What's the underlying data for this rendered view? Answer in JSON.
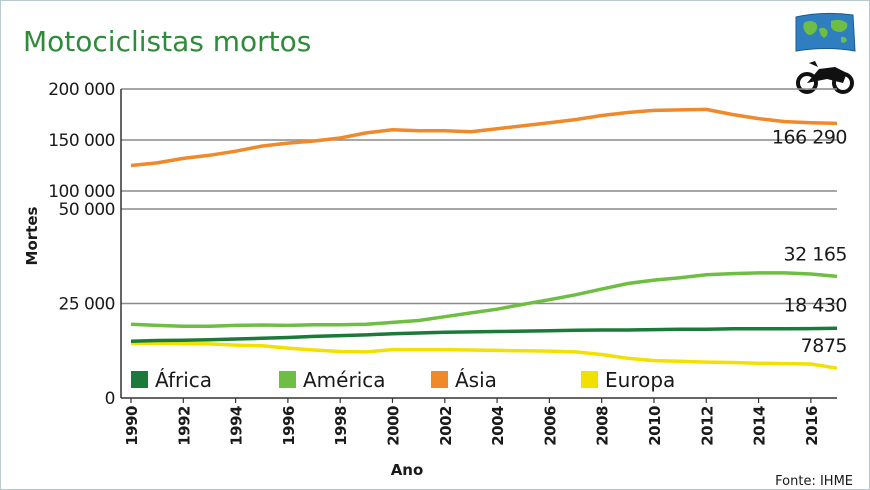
{
  "chart_data": {
    "type": "line",
    "title": "Motociclistas mortos",
    "xlabel": "Ano",
    "ylabel": "Mortes",
    "source": "Fonte: IHME",
    "grid": "horizontal",
    "legend_position": "bottom-left",
    "axis_break": "between 50 000 and 100 000",
    "xlim": [
      1990,
      2017
    ],
    "x_ticks": [
      "1990",
      "1992",
      "1994",
      "1996",
      "1998",
      "2000",
      "2002",
      "2004",
      "2006",
      "2008",
      "2010",
      "2012",
      "2014",
      "2016"
    ],
    "y_ticks_lower": [
      {
        "value": 0,
        "label": "0"
      },
      {
        "value": 25000,
        "label": "25 000"
      },
      {
        "value": 50000,
        "label": "50 000"
      }
    ],
    "y_ticks_upper": [
      {
        "value": 100000,
        "label": "100 000"
      },
      {
        "value": 150000,
        "label": "150 000"
      },
      {
        "value": 200000,
        "label": "200 000"
      }
    ],
    "x": [
      1990,
      1991,
      1992,
      1993,
      1994,
      1995,
      1996,
      1997,
      1998,
      1999,
      2000,
      2001,
      2002,
      2003,
      2004,
      2005,
      2006,
      2007,
      2008,
      2009,
      2010,
      2011,
      2012,
      2013,
      2014,
      2015,
      2016,
      2017
    ],
    "series": [
      {
        "name": "Ásia",
        "color": "#f0892a",
        "end_label": "166 290",
        "values": [
          125000,
          127500,
          132000,
          135000,
          139000,
          144000,
          147000,
          149000,
          152000,
          157000,
          160000,
          159000,
          159000,
          158000,
          161000,
          164000,
          167000,
          170000,
          174000,
          177000,
          179000,
          179500,
          180000,
          175000,
          171000,
          168000,
          167000,
          166290
        ]
      },
      {
        "name": "América",
        "color": "#6fbe44",
        "end_label": "32 165",
        "values": [
          19500,
          19200,
          19000,
          19000,
          19200,
          19300,
          19200,
          19400,
          19400,
          19500,
          20000,
          20500,
          21500,
          22500,
          23500,
          24800,
          26000,
          27300,
          28800,
          30300,
          31200,
          31800,
          32600,
          32900,
          33100,
          33100,
          32800,
          32165
        ]
      },
      {
        "name": "África",
        "color": "#1b7a3a",
        "end_label": "18 430",
        "values": [
          15000,
          15200,
          15300,
          15400,
          15600,
          15800,
          16000,
          16300,
          16500,
          16700,
          17000,
          17200,
          17400,
          17500,
          17600,
          17700,
          17800,
          17900,
          18000,
          18000,
          18100,
          18200,
          18200,
          18300,
          18300,
          18300,
          18350,
          18430
        ]
      },
      {
        "name": "Europa",
        "color": "#f2e000",
        "end_label": "7875",
        "values": [
          14500,
          14500,
          14400,
          14300,
          14000,
          13800,
          13200,
          12700,
          12300,
          12200,
          12800,
          12800,
          12800,
          12700,
          12600,
          12500,
          12400,
          12200,
          11500,
          10500,
          9900,
          9700,
          9500,
          9400,
          9200,
          9100,
          9000,
          7875
        ]
      }
    ],
    "legend_order": [
      "África",
      "América",
      "Ásia",
      "Europa"
    ]
  }
}
